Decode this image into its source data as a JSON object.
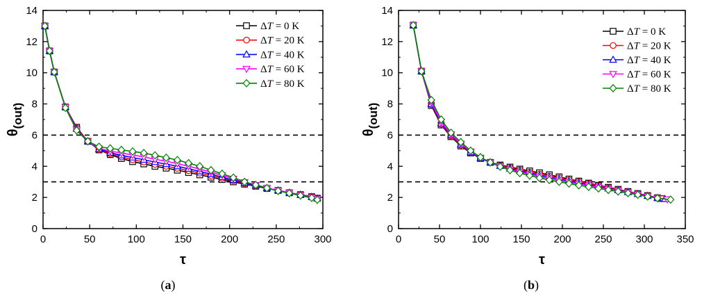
{
  "chart_data": [
    {
      "type": "line",
      "panel_label_open": "(",
      "panel_label_letter": "a",
      "panel_label_close": ")",
      "xlabel": "τ",
      "ylabel_main": "θ",
      "ylabel_sub": "(out)",
      "xlim": [
        0,
        300
      ],
      "ylim": [
        0,
        14
      ],
      "xticks": [
        0,
        50,
        100,
        150,
        200,
        250,
        300
      ],
      "yticks": [
        0,
        2,
        4,
        6,
        8,
        10,
        12,
        14
      ],
      "legend_position": "top-right",
      "legend_prefix": "Δ",
      "legend_var": "T",
      "reference_lines": [
        6,
        3
      ],
      "series": [
        {
          "name": " = 0 K",
          "color": "#000000",
          "marker": "square",
          "x": [
            2,
            7,
            12,
            24,
            36,
            48,
            60,
            72,
            84,
            96,
            108,
            120,
            132,
            144,
            156,
            168,
            180,
            192,
            204,
            216,
            228,
            240,
            252,
            264,
            276,
            288,
            294
          ],
          "y": [
            13.0,
            11.4,
            10.05,
            7.8,
            6.5,
            5.6,
            5.05,
            4.75,
            4.5,
            4.3,
            4.15,
            4.0,
            3.88,
            3.75,
            3.6,
            3.45,
            3.3,
            3.15,
            3.0,
            2.85,
            2.72,
            2.58,
            2.45,
            2.3,
            2.18,
            2.05,
            1.95
          ]
        },
        {
          "name": " = 20 K",
          "color": "#ff0000",
          "marker": "circle",
          "x": [
            2,
            7,
            12,
            24,
            36,
            48,
            60,
            72,
            84,
            96,
            108,
            120,
            132,
            144,
            156,
            168,
            180,
            192,
            204,
            216,
            228,
            240,
            252,
            264,
            276,
            288,
            294
          ],
          "y": [
            13.0,
            11.4,
            10.05,
            7.8,
            6.45,
            5.6,
            5.07,
            4.8,
            4.6,
            4.42,
            4.28,
            4.12,
            4.0,
            3.87,
            3.72,
            3.56,
            3.4,
            3.23,
            3.07,
            2.9,
            2.75,
            2.6,
            2.45,
            2.3,
            2.18,
            2.05,
            1.95
          ]
        },
        {
          "name": " = 40 K",
          "color": "#0000ff",
          "marker": "triangle-up",
          "x": [
            2,
            7,
            12,
            24,
            36,
            48,
            60,
            72,
            84,
            96,
            108,
            120,
            132,
            144,
            156,
            168,
            180,
            192,
            204,
            216,
            228,
            240,
            252,
            264,
            276,
            288,
            294
          ],
          "y": [
            13.0,
            11.4,
            10.05,
            7.8,
            6.4,
            5.6,
            5.1,
            4.87,
            4.7,
            4.56,
            4.42,
            4.27,
            4.14,
            4.0,
            3.84,
            3.67,
            3.5,
            3.3,
            3.12,
            2.93,
            2.77,
            2.6,
            2.45,
            2.3,
            2.17,
            2.03,
            1.93
          ]
        },
        {
          "name": " = 60 K",
          "color": "#ff00ff",
          "marker": "triangle-down",
          "x": [
            2,
            7,
            12,
            24,
            36,
            48,
            60,
            72,
            84,
            96,
            108,
            120,
            132,
            144,
            156,
            168,
            180,
            192,
            204,
            216,
            228,
            240,
            252,
            264,
            276,
            288,
            294
          ],
          "y": [
            13.0,
            11.4,
            10.05,
            7.8,
            6.35,
            5.6,
            5.15,
            4.97,
            4.85,
            4.72,
            4.6,
            4.45,
            4.32,
            4.17,
            4.0,
            3.82,
            3.62,
            3.42,
            3.2,
            2.98,
            2.8,
            2.62,
            2.45,
            2.3,
            2.15,
            2.0,
            1.9
          ]
        },
        {
          "name": " = 80 K",
          "color": "#008000",
          "marker": "diamond",
          "x": [
            2,
            7,
            12,
            24,
            36,
            48,
            60,
            72,
            84,
            96,
            108,
            120,
            132,
            144,
            156,
            168,
            180,
            192,
            204,
            216,
            228,
            240,
            252,
            264,
            276,
            288,
            294
          ],
          "y": [
            13.0,
            11.4,
            10.05,
            7.75,
            6.3,
            5.6,
            5.25,
            5.15,
            5.05,
            4.95,
            4.85,
            4.7,
            4.55,
            4.4,
            4.2,
            4.0,
            3.75,
            3.52,
            3.27,
            3.0,
            2.8,
            2.6,
            2.42,
            2.27,
            2.12,
            1.97,
            1.85
          ]
        }
      ]
    },
    {
      "type": "line",
      "panel_label_open": "(",
      "panel_label_letter": "b",
      "panel_label_close": ")",
      "xlabel": "τ",
      "ylabel_main": "θ",
      "ylabel_sub": "(out)",
      "xlim": [
        0,
        350
      ],
      "ylim": [
        0,
        14
      ],
      "xticks": [
        0,
        50,
        100,
        150,
        200,
        250,
        300,
        350
      ],
      "yticks": [
        0,
        2,
        4,
        6,
        8,
        10,
        12,
        14
      ],
      "legend_position": "top-right",
      "legend_prefix": "Δ",
      "legend_var": "T",
      "reference_lines": [
        6,
        3
      ],
      "series": [
        {
          "name": " = 0 K",
          "color": "#000000",
          "marker": "square",
          "x": [
            18,
            28,
            40,
            52,
            64,
            76,
            88,
            100,
            112,
            124,
            136,
            148,
            160,
            172,
            184,
            196,
            208,
            220,
            232,
            244,
            256,
            268,
            280,
            292,
            304,
            316,
            320
          ],
          "y": [
            13.05,
            10.1,
            7.9,
            6.65,
            5.9,
            5.3,
            4.85,
            4.5,
            4.25,
            4.08,
            3.95,
            3.82,
            3.7,
            3.58,
            3.45,
            3.32,
            3.18,
            3.05,
            2.92,
            2.78,
            2.65,
            2.52,
            2.38,
            2.25,
            2.12,
            1.98,
            1.93
          ]
        },
        {
          "name": " = 20 K",
          "color": "#ff0000",
          "marker": "circle",
          "x": [
            18,
            28,
            40,
            52,
            64,
            76,
            88,
            100,
            112,
            124,
            136,
            148,
            160,
            172,
            184,
            196,
            208,
            220,
            232,
            244,
            256,
            268,
            280,
            292,
            304,
            316,
            322
          ],
          "y": [
            13.05,
            10.1,
            7.95,
            6.7,
            5.95,
            5.35,
            4.88,
            4.52,
            4.25,
            4.05,
            3.9,
            3.76,
            3.62,
            3.5,
            3.37,
            3.25,
            3.12,
            3.0,
            2.88,
            2.75,
            2.62,
            2.5,
            2.37,
            2.25,
            2.12,
            1.98,
            1.92
          ]
        },
        {
          "name": " = 40 K",
          "color": "#0000ff",
          "marker": "triangle-up",
          "x": [
            18,
            28,
            40,
            52,
            64,
            76,
            88,
            100,
            112,
            124,
            136,
            148,
            160,
            172,
            184,
            196,
            208,
            220,
            232,
            244,
            256,
            268,
            280,
            292,
            304,
            316,
            325
          ],
          "y": [
            13.05,
            10.1,
            8.0,
            6.75,
            6.0,
            5.4,
            4.9,
            4.53,
            4.25,
            4.02,
            3.85,
            3.7,
            3.56,
            3.42,
            3.3,
            3.17,
            3.05,
            2.93,
            2.82,
            2.7,
            2.58,
            2.46,
            2.34,
            2.22,
            2.1,
            1.97,
            1.9
          ]
        },
        {
          "name": " = 60 K",
          "color": "#ff00ff",
          "marker": "triangle-down",
          "x": [
            18,
            28,
            40,
            52,
            64,
            76,
            88,
            100,
            112,
            124,
            136,
            148,
            160,
            172,
            184,
            196,
            208,
            220,
            232,
            244,
            256,
            268,
            280,
            292,
            304,
            316,
            328
          ],
          "y": [
            13.05,
            10.1,
            8.1,
            6.85,
            6.05,
            5.45,
            4.95,
            4.55,
            4.25,
            4.0,
            3.8,
            3.63,
            3.48,
            3.34,
            3.21,
            3.09,
            2.97,
            2.86,
            2.76,
            2.65,
            2.54,
            2.43,
            2.32,
            2.2,
            2.08,
            1.96,
            1.88
          ]
        },
        {
          "name": " = 80 K",
          "color": "#008000",
          "marker": "diamond",
          "x": [
            18,
            28,
            40,
            52,
            64,
            76,
            88,
            100,
            112,
            124,
            136,
            148,
            160,
            172,
            184,
            196,
            208,
            220,
            232,
            244,
            256,
            268,
            280,
            292,
            304,
            316,
            332
          ],
          "y": [
            13.05,
            10.1,
            8.25,
            7.0,
            6.15,
            5.55,
            5.0,
            4.58,
            4.25,
            3.97,
            3.75,
            3.56,
            3.4,
            3.25,
            3.12,
            3.0,
            2.89,
            2.78,
            2.68,
            2.58,
            2.48,
            2.38,
            2.28,
            2.17,
            2.06,
            1.95,
            1.86
          ]
        }
      ]
    }
  ]
}
